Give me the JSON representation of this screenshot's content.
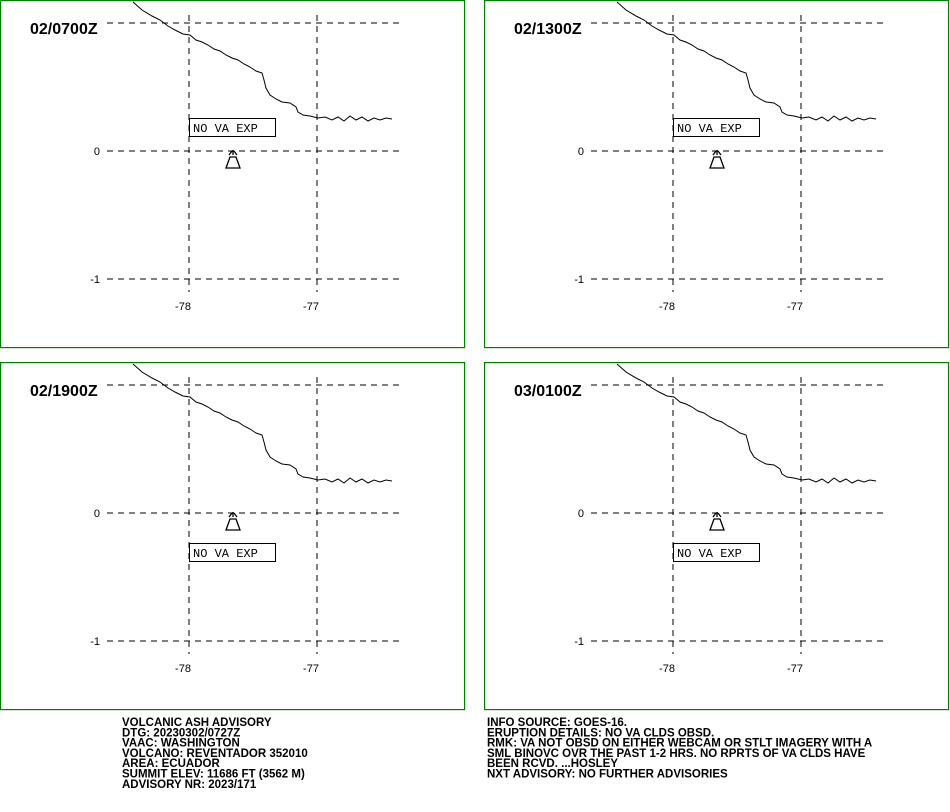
{
  "panels": [
    {
      "time": "02/0700Z",
      "label": "NO VA EXP"
    },
    {
      "time": "02/1300Z",
      "label": "NO VA EXP"
    },
    {
      "time": "02/1900Z",
      "label": "NO VA EXP"
    },
    {
      "time": "03/0100Z",
      "label": "NO VA EXP"
    }
  ],
  "lat_labels": [
    "0",
    "-1"
  ],
  "lon_labels": [
    "-78",
    "-77"
  ],
  "advisory_left": [
    "VOLCANIC ASH ADVISORY",
    "DTG: 20230302/0727Z",
    "VAAC: WASHINGTON",
    "VOLCANO: REVENTADOR 352010",
    "AREA: ECUADOR",
    "SUMMIT ELEV: 11686 FT (3562 M)",
    "ADVISORY NR: 2023/171"
  ],
  "advisory_right": [
    "INFO SOURCE: GOES-16.",
    "ERUPTION DETAILS: NO VA CLDS OBSD.",
    "RMK: VA NOT OBSD ON EITHER WEBCAM OR STLT IMAGERY WITH A",
    "SML BINOVC OVR THE PAST 1-2 HRS. NO RPRTS OF VA CLDS HAVE",
    "BEEN RCVD. ...HOSLEY",
    "NXT ADVISORY: NO FURTHER ADVISORIES"
  ]
}
